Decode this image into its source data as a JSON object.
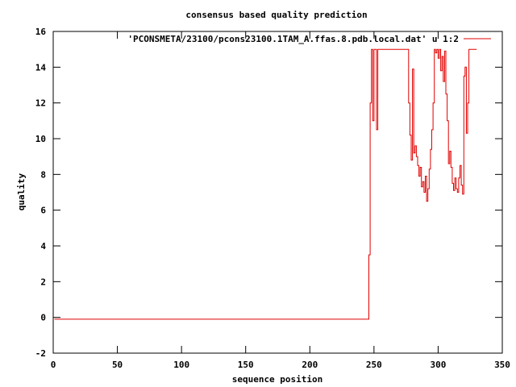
{
  "chart_data": {
    "type": "line",
    "title": "consensus based quality prediction",
    "xlabel": "sequence position",
    "ylabel": "quality",
    "xlim": [
      0,
      350
    ],
    "ylim": [
      -2,
      16
    ],
    "x_ticks": [
      0,
      50,
      100,
      150,
      200,
      250,
      300,
      350
    ],
    "y_ticks": [
      -2,
      0,
      2,
      4,
      6,
      8,
      10,
      12,
      14,
      16
    ],
    "grid": false,
    "legend_position": "top-right",
    "series": [
      {
        "name": "'PCONSMETA/23100/pcons23100.1TAM_A.ffas.8.pdb.local.dat' u 1:2",
        "color": "#e00000",
        "points": [
          [
            1,
            -0.1
          ],
          [
            245,
            -0.1
          ],
          [
            246,
            3.5
          ],
          [
            247,
            12.0
          ],
          [
            248,
            15.0
          ],
          [
            249,
            11.0
          ],
          [
            250,
            15.0
          ],
          [
            251,
            15.0
          ],
          [
            252,
            10.5
          ],
          [
            253,
            15.0
          ],
          [
            270,
            15.0
          ],
          [
            276,
            15.0
          ],
          [
            277,
            12.0
          ],
          [
            278,
            10.2
          ],
          [
            279,
            8.8
          ],
          [
            280,
            13.9
          ],
          [
            281,
            9.2
          ],
          [
            282,
            9.6
          ],
          [
            283,
            9.0
          ],
          [
            284,
            8.5
          ],
          [
            285,
            7.9
          ],
          [
            286,
            8.4
          ],
          [
            287,
            7.3
          ],
          [
            288,
            7.6
          ],
          [
            289,
            7.0
          ],
          [
            290,
            7.9
          ],
          [
            291,
            6.5
          ],
          [
            292,
            7.2
          ],
          [
            293,
            8.3
          ],
          [
            294,
            9.4
          ],
          [
            295,
            10.5
          ],
          [
            296,
            12.0
          ],
          [
            297,
            15.0
          ],
          [
            298,
            14.8
          ],
          [
            299,
            15.0
          ],
          [
            300,
            14.5
          ],
          [
            301,
            15.0
          ],
          [
            302,
            13.8
          ],
          [
            303,
            14.6
          ],
          [
            304,
            13.2
          ],
          [
            305,
            14.9
          ],
          [
            306,
            12.5
          ],
          [
            307,
            11.0
          ],
          [
            308,
            8.6
          ],
          [
            309,
            9.3
          ],
          [
            310,
            8.4
          ],
          [
            311,
            7.5
          ],
          [
            312,
            7.1
          ],
          [
            313,
            7.8
          ],
          [
            314,
            7.2
          ],
          [
            315,
            7.0
          ],
          [
            316,
            7.8
          ],
          [
            317,
            8.5
          ],
          [
            318,
            7.4
          ],
          [
            319,
            6.9
          ],
          [
            320,
            13.5
          ],
          [
            321,
            14.0
          ],
          [
            322,
            10.3
          ],
          [
            323,
            12.0
          ],
          [
            324,
            15.0
          ],
          [
            330,
            15.0
          ]
        ]
      }
    ]
  }
}
